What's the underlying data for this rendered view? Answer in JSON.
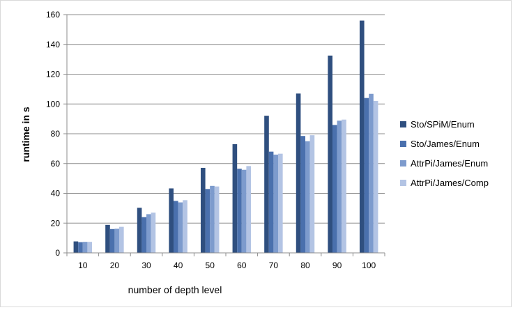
{
  "chart_data": {
    "type": "bar",
    "title": "",
    "xlabel": "number of depth level",
    "ylabel": "runtime in s",
    "categories": [
      "10",
      "20",
      "30",
      "40",
      "50",
      "60",
      "70",
      "80",
      "90",
      "100"
    ],
    "ylim": [
      0,
      160
    ],
    "yticks": [
      0,
      20,
      40,
      60,
      80,
      100,
      120,
      140,
      160
    ],
    "grid": "horizontal",
    "legend_position": "right",
    "series": [
      {
        "name": "Sto/SPiM/Enum",
        "color": "#2f4f7f",
        "values": [
          7.7,
          18.8,
          30.3,
          43.3,
          57.1,
          73.0,
          92.1,
          107.0,
          132.5,
          156.0
        ]
      },
      {
        "name": "Sto/James/Enum",
        "color": "#4a70ad",
        "values": [
          7.2,
          16.0,
          24.0,
          34.9,
          42.9,
          56.5,
          68.0,
          78.5,
          85.9,
          104.0
        ]
      },
      {
        "name": "AttrPi/James/Enum",
        "color": "#7d9bcd",
        "values": [
          7.4,
          16.2,
          26.0,
          33.9,
          45.0,
          55.8,
          66.0,
          75.0,
          88.8,
          106.8
        ]
      },
      {
        "name": "AttrPi/James/Comp",
        "color": "#b3c4e4",
        "values": [
          7.4,
          17.5,
          27.0,
          35.4,
          44.6,
          58.3,
          66.6,
          79.0,
          89.5,
          102.0
        ]
      }
    ]
  }
}
